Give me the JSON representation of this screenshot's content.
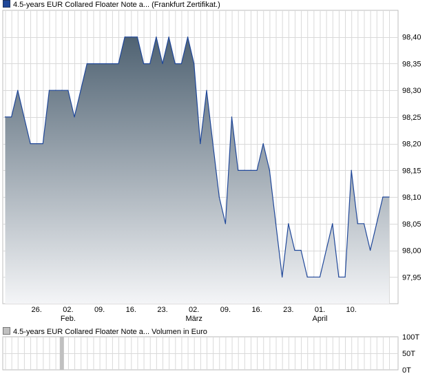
{
  "legend": {
    "price": "4.5-years EUR Collared Floater Note a... (Frankfurt Zertifikat.)",
    "volume": "4.5-years EUR Collared Floater Note a... Volumen in Euro"
  },
  "colors": {
    "line": "#1f4799",
    "fill_top": "#4f6272",
    "fill_bottom": "#f4f5f7",
    "grid": "#d9d9d9",
    "volume_bar": "#c0c0c0"
  },
  "chart_data": [
    {
      "type": "area",
      "title": "",
      "xlabel": "",
      "ylabel": "",
      "ylim": [
        97.9,
        98.45
      ],
      "y_ticks": [
        "98,40",
        "98,35",
        "98,30",
        "98,25",
        "98,20",
        "98,15",
        "98,10",
        "98,05",
        "98,00",
        "97,95"
      ],
      "y_tick_values": [
        98.4,
        98.35,
        98.3,
        98.25,
        98.2,
        98.15,
        98.1,
        98.05,
        98.0,
        97.95
      ],
      "x_ticks": [
        {
          "label": "26.",
          "sub": "",
          "index": 5
        },
        {
          "label": "02.",
          "sub": "Feb.",
          "index": 10
        },
        {
          "label": "09.",
          "sub": "",
          "index": 15
        },
        {
          "label": "16.",
          "sub": "",
          "index": 20
        },
        {
          "label": "23.",
          "sub": "",
          "index": 25
        },
        {
          "label": "02.",
          "sub": "März",
          "index": 30
        },
        {
          "label": "09.",
          "sub": "",
          "index": 35
        },
        {
          "label": "16.",
          "sub": "",
          "index": 40
        },
        {
          "label": "23.",
          "sub": "",
          "index": 45
        },
        {
          "label": "01.",
          "sub": "April",
          "index": 50
        },
        {
          "label": "10.",
          "sub": "",
          "index": 55
        }
      ],
      "grid": true,
      "series": [
        {
          "values": [
            98.25,
            98.25,
            98.3,
            98.25,
            98.2,
            98.2,
            98.2,
            98.3,
            98.3,
            98.3,
            98.3,
            98.25,
            98.3,
            98.35,
            98.35,
            98.35,
            98.35,
            98.35,
            98.35,
            98.4,
            98.4,
            98.4,
            98.35,
            98.35,
            98.4,
            98.35,
            98.4,
            98.35,
            98.35,
            98.4,
            98.35,
            98.2,
            98.3,
            98.2,
            98.1,
            98.05,
            98.25,
            98.15,
            98.15,
            98.15,
            98.15,
            98.2,
            98.15,
            98.05,
            97.95,
            98.05,
            98.0,
            98.0,
            97.95,
            97.95,
            97.95,
            98.0,
            98.05,
            97.95,
            97.95,
            98.15,
            98.05,
            98.05,
            98.0,
            98.05,
            98.1,
            98.1
          ]
        }
      ]
    },
    {
      "type": "bar",
      "title": "",
      "xlabel": "",
      "ylabel": "",
      "ylim": [
        0,
        100
      ],
      "y_ticks": [
        "100T",
        "50T",
        "0T"
      ],
      "y_tick_values": [
        100,
        50,
        0
      ],
      "grid": true,
      "series": [
        {
          "values": [
            {
              "index": 9,
              "value": 100
            }
          ]
        }
      ]
    }
  ]
}
